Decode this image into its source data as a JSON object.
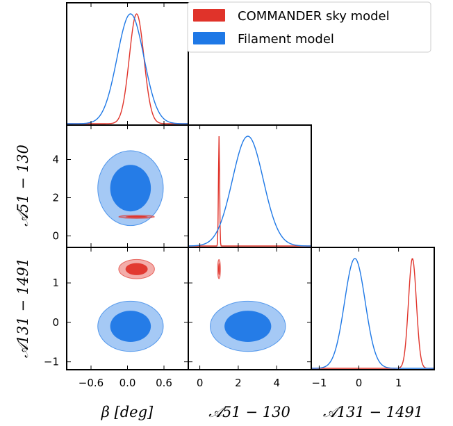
{
  "colors": {
    "commander": "#e0332a",
    "filament": "#1e78e6"
  },
  "legend": {
    "items": [
      {
        "label": "COMMANDER sky model",
        "color": "#e0332a"
      },
      {
        "label": "Filament model",
        "color": "#1e78e6"
      }
    ]
  },
  "axis_labels": {
    "x_beta": "β [deg]",
    "x_a51": "𝒜51 − 130",
    "x_a131": "𝒜131 − 1491",
    "y_a51": "𝒜51 − 130",
    "y_a131": "𝒜131 − 1491"
  },
  "chart_data": {
    "type": "corner",
    "parameters": [
      {
        "name": "β [deg]",
        "range": [
          -1.0,
          1.0
        ],
        "ticks": [
          -0.6,
          0.0,
          0.6
        ],
        "tick_labels": [
          "−0.6",
          "0.0",
          "0.6"
        ]
      },
      {
        "name": "𝒜51 − 130",
        "range": [
          -0.6,
          5.8
        ],
        "ticks": [
          0,
          2,
          4
        ],
        "tick_labels": [
          "0",
          "2",
          "4"
        ]
      },
      {
        "name": "𝒜131 − 1491",
        "range": [
          -1.2,
          1.9
        ],
        "ticks": [
          -1,
          0,
          1
        ],
        "tick_labels": [
          "−1",
          "0",
          "1"
        ]
      }
    ],
    "series": [
      {
        "name": "COMMANDER sky model",
        "color": "#e0332a",
        "marginals": [
          {
            "mean": 0.15,
            "sigma": 0.12
          },
          {
            "mean": 1.0,
            "sigma": 0.03
          },
          {
            "mean": 1.35,
            "sigma": 0.1
          }
        ],
        "contours_2d": [
          {
            "x_param": 0,
            "y_param": 1,
            "center": [
              0.15,
              1.0
            ],
            "sigma": [
              0.12,
              0.03
            ],
            "levels": [
              "68%",
              "95%"
            ]
          },
          {
            "x_param": 0,
            "y_param": 2,
            "center": [
              0.15,
              1.35
            ],
            "sigma": [
              0.12,
              0.1
            ],
            "levels": [
              "68%",
              "95%"
            ]
          },
          {
            "x_param": 1,
            "y_param": 2,
            "center": [
              1.0,
              1.35
            ],
            "sigma": [
              0.03,
              0.1
            ],
            "levels": [
              "68%",
              "95%"
            ]
          }
        ]
      },
      {
        "name": "Filament model",
        "color": "#1e78e6",
        "marginals": [
          {
            "mean": 0.05,
            "sigma": 0.22
          },
          {
            "mean": 2.5,
            "sigma": 0.8
          },
          {
            "mean": -0.1,
            "sigma": 0.26
          }
        ],
        "contours_2d": [
          {
            "x_param": 0,
            "y_param": 1,
            "center": [
              0.05,
              2.5
            ],
            "sigma": [
              0.22,
              0.8
            ],
            "levels": [
              "68%",
              "95%"
            ]
          },
          {
            "x_param": 0,
            "y_param": 2,
            "center": [
              0.05,
              -0.1
            ],
            "sigma": [
              0.22,
              0.26
            ],
            "levels": [
              "68%",
              "95%"
            ]
          },
          {
            "x_param": 1,
            "y_param": 2,
            "center": [
              2.5,
              -0.1
            ],
            "sigma": [
              0.8,
              0.26
            ],
            "levels": [
              "68%",
              "95%"
            ]
          }
        ]
      }
    ],
    "legend_position": "top-right"
  }
}
